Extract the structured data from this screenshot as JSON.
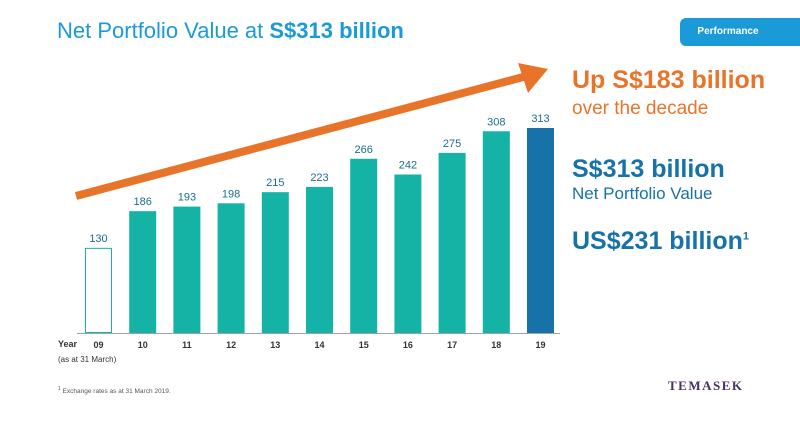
{
  "header": {
    "title_prefix": "Net Portfolio Value at ",
    "title_highlight": "S$313 billion",
    "badge": "Performance"
  },
  "highlights": {
    "up_amount": "Up S$183 billion",
    "up_period": "over the decade",
    "npv_value": "S$313 billion",
    "npv_label": "Net Portfolio Value",
    "usd_value": "US$231 billion",
    "usd_footnote_mark": "1"
  },
  "axis": {
    "year_label": "Year",
    "year_note": "(as at 31 March)"
  },
  "footnote": {
    "mark": "1",
    "text": " Exchange rates as at 31 March 2019."
  },
  "logo": "TEMASEK",
  "colors": {
    "title_blue": "#1a9bd7",
    "bar_teal": "#14b3a6",
    "bar_highlight": "#1672a8",
    "arrow_orange": "#e8742a",
    "dark_blue": "#1672a8",
    "logo_purple": "#4a3063"
  },
  "chart_data": {
    "type": "bar",
    "title": "Net Portfolio Value at S$313 billion",
    "xlabel": "Year",
    "ylabel": "",
    "categories": [
      "09",
      "10",
      "11",
      "12",
      "13",
      "14",
      "15",
      "16",
      "17",
      "18",
      "19"
    ],
    "values": [
      130,
      186,
      193,
      198,
      215,
      223,
      266,
      242,
      275,
      308,
      313
    ],
    "ylim": [
      0,
      330
    ],
    "bar_styles": [
      "outline",
      "filled",
      "filled",
      "filled",
      "filled",
      "filled",
      "filled",
      "filled",
      "filled",
      "filled",
      "highlight"
    ],
    "annotation": "trend arrow from 09 to 19"
  }
}
